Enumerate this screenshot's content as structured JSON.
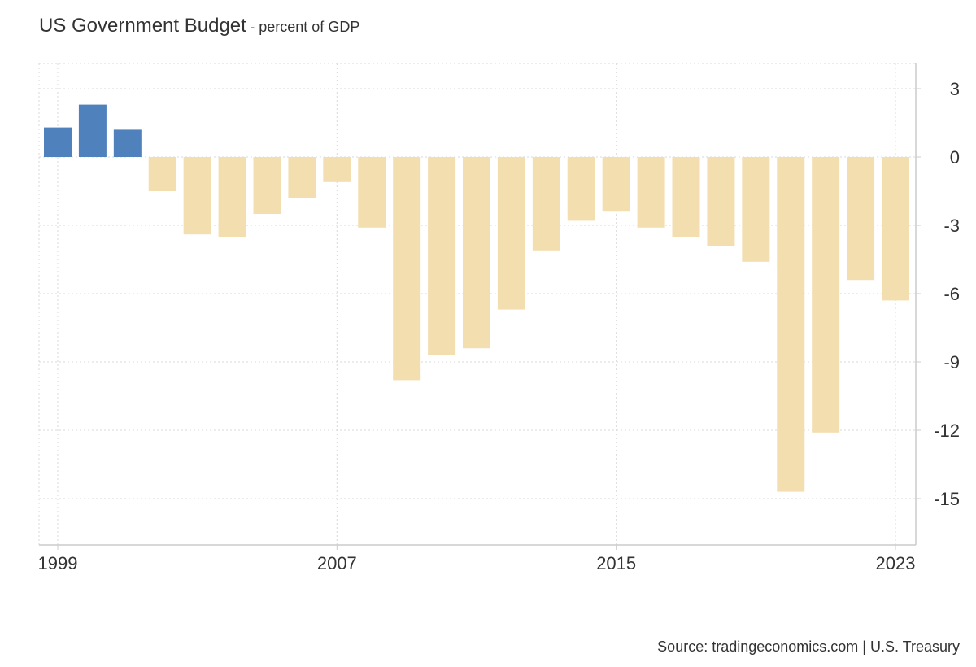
{
  "header": {
    "title": "US Government Budget",
    "subtitle": "- percent of GDP"
  },
  "footer": {
    "source": "Source: tradingeconomics.com | U.S. Treasury"
  },
  "colors": {
    "positive": "#4f81bd",
    "negative": "#f3deb0",
    "grid": "#d9d9d9",
    "axis": "#cccccc"
  },
  "chart_data": {
    "type": "bar",
    "categories": [
      "1999",
      "2000",
      "2001",
      "2002",
      "2003",
      "2004",
      "2005",
      "2006",
      "2007",
      "2008",
      "2009",
      "2010",
      "2011",
      "2012",
      "2013",
      "2014",
      "2015",
      "2016",
      "2017",
      "2018",
      "2019",
      "2020",
      "2021",
      "2022",
      "2023"
    ],
    "values": [
      1.3,
      2.3,
      1.2,
      -1.5,
      -3.4,
      -3.5,
      -2.5,
      -1.8,
      -1.1,
      -3.1,
      -9.8,
      -8.7,
      -8.4,
      -6.7,
      -4.1,
      -2.8,
      -2.4,
      -3.1,
      -3.5,
      -3.9,
      -4.6,
      -14.7,
      -12.1,
      -5.4,
      -6.3
    ],
    "title": "US Government Budget",
    "subtitle": "- percent of GDP",
    "xlabel": "",
    "ylabel": "",
    "ylim": [
      -17,
      4
    ],
    "yticks": [
      3,
      0,
      -3,
      -6,
      -9,
      -12,
      -15
    ],
    "xticks": [
      "1999",
      "2007",
      "2015",
      "2023"
    ],
    "grid": true,
    "y_axis_position": "right",
    "legend": "none"
  }
}
